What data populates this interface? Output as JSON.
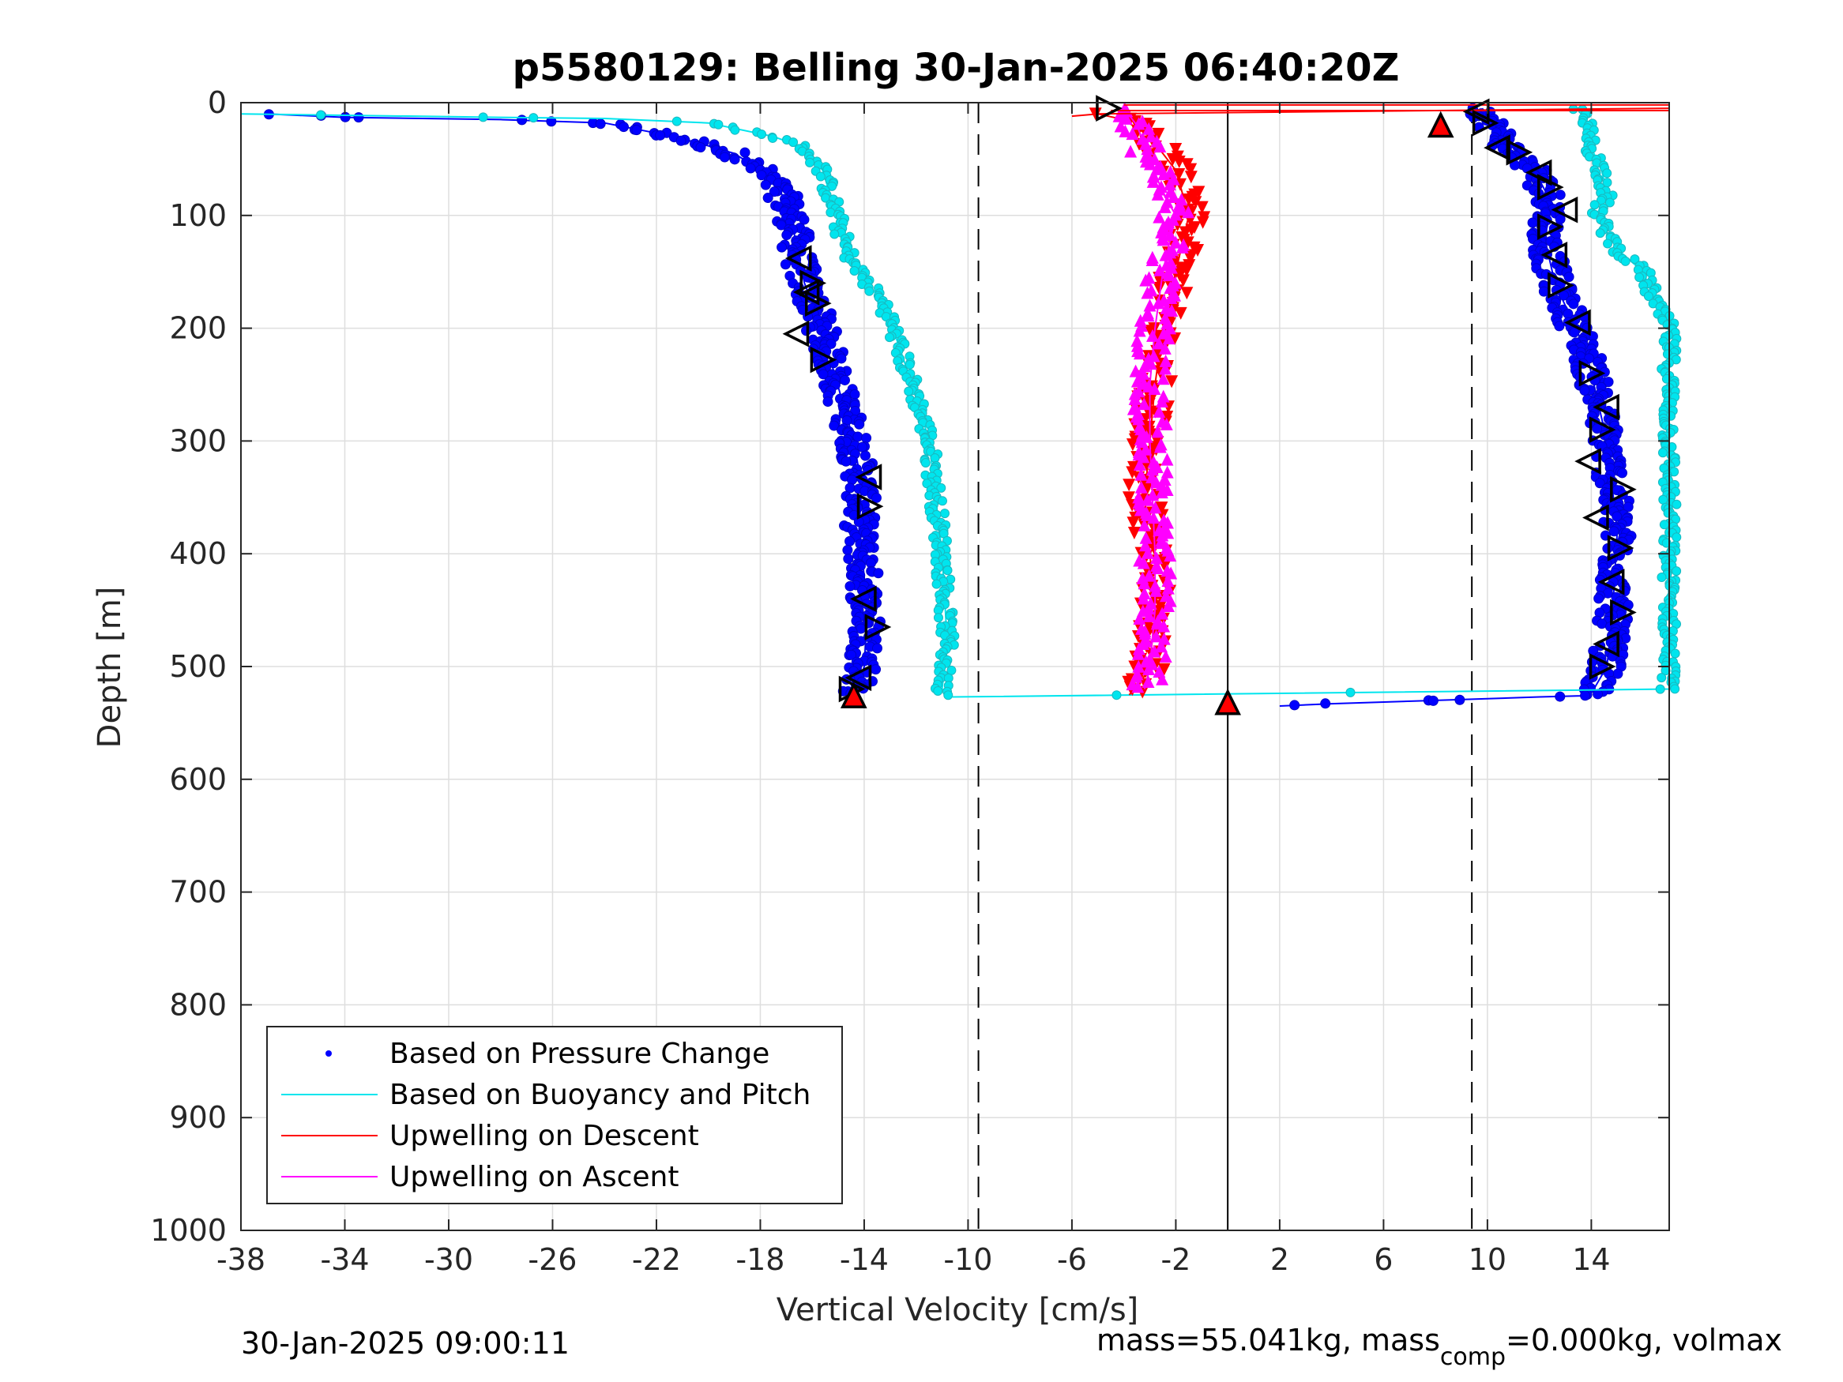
{
  "chart_data": {
    "type": "scatter",
    "title": "p5580129: Belling 30-Jan-2025 06:40:20Z",
    "xlabel": "Vertical Velocity [cm/s]",
    "ylabel": "Depth [m]",
    "xlim": [
      -38,
      17
    ],
    "ylim": [
      0,
      1000
    ],
    "y_reversed": true,
    "grid": true,
    "xticks": [
      -38,
      -34,
      -30,
      -26,
      -22,
      -18,
      -14,
      -10,
      -6,
      -2,
      2,
      6,
      10,
      14
    ],
    "yticks": [
      0,
      100,
      200,
      300,
      400,
      500,
      600,
      700,
      800,
      900,
      1000
    ],
    "legend_position": "bottom-left",
    "legend": [
      {
        "name": "Based on Pressure Change",
        "style": "dots",
        "color": "#0000ff"
      },
      {
        "name": "Based on Buoyancy and Pitch",
        "style": "line",
        "color": "#00e5ee"
      },
      {
        "name": "Upwelling on Descent",
        "style": "line",
        "color": "#ff0000"
      },
      {
        "name": "Upwelling on Ascent",
        "style": "line",
        "color": "#ff00ff"
      }
    ],
    "reference_lines": [
      {
        "x": -9.6,
        "style": "dashed"
      },
      {
        "x": 0,
        "style": "solid"
      },
      {
        "x": 9.4,
        "style": "dashed"
      }
    ],
    "series": [
      {
        "name": "Based on Pressure Change",
        "role": "descent",
        "color": "#0000ff",
        "profile": [
          [
            -37,
            10
          ],
          [
            -34,
            13
          ],
          [
            -28,
            15
          ],
          [
            -24,
            18
          ],
          [
            -22,
            27
          ],
          [
            -20.5,
            35
          ],
          [
            -19,
            45
          ],
          [
            -18,
            60
          ],
          [
            -17.2,
            80
          ],
          [
            -16.8,
            100
          ],
          [
            -16.6,
            130
          ],
          [
            -16.3,
            160
          ],
          [
            -15.8,
            190
          ],
          [
            -15.4,
            220
          ],
          [
            -14.9,
            260
          ],
          [
            -14.4,
            300
          ],
          [
            -14.1,
            340
          ],
          [
            -14.2,
            380
          ],
          [
            -14.0,
            420
          ],
          [
            -13.9,
            460
          ],
          [
            -14.0,
            500
          ],
          [
            -14.3,
            525
          ]
        ]
      },
      {
        "name": "Based on Buoyancy and Pitch",
        "role": "descent",
        "color": "#00e5ee",
        "profile": [
          [
            -38,
            10
          ],
          [
            -28,
            13
          ],
          [
            -24,
            14
          ],
          [
            -20,
            18
          ],
          [
            -17.5,
            30
          ],
          [
            -16.3,
            40
          ],
          [
            -15.6,
            60
          ],
          [
            -15.2,
            90
          ],
          [
            -14.7,
            130
          ],
          [
            -14.2,
            150
          ],
          [
            -13.2,
            180
          ],
          [
            -12.6,
            220
          ],
          [
            -12.0,
            260
          ],
          [
            -11.5,
            300
          ],
          [
            -11.2,
            360
          ],
          [
            -11.0,
            400
          ],
          [
            -10.9,
            440
          ],
          [
            -10.8,
            480
          ],
          [
            -11.0,
            520
          ],
          [
            -10.6,
            527
          ]
        ]
      },
      {
        "name": "Based on Pressure Change",
        "role": "ascent",
        "color": "#0000ff",
        "profile": [
          [
            9.8,
            5
          ],
          [
            10.2,
            20
          ],
          [
            10.8,
            40
          ],
          [
            11.8,
            60
          ],
          [
            12.5,
            90
          ],
          [
            12.2,
            120
          ],
          [
            12.6,
            160
          ],
          [
            13.2,
            190
          ],
          [
            13.8,
            220
          ],
          [
            14.2,
            260
          ],
          [
            14.6,
            300
          ],
          [
            14.8,
            340
          ],
          [
            15.0,
            380
          ],
          [
            14.9,
            420
          ],
          [
            14.8,
            460
          ],
          [
            14.6,
            500
          ],
          [
            14.1,
            520
          ],
          [
            13.6,
            526
          ],
          [
            12,
            527
          ],
          [
            8,
            530
          ],
          [
            4,
            533
          ],
          [
            2,
            535
          ]
        ]
      },
      {
        "name": "Based on Buoyancy and Pitch",
        "role": "ascent",
        "color": "#00e5ee",
        "profile": [
          [
            13.5,
            5
          ],
          [
            13.8,
            20
          ],
          [
            14.0,
            40
          ],
          [
            14.4,
            60
          ],
          [
            14.6,
            80
          ],
          [
            14.2,
            100
          ],
          [
            15.0,
            130
          ],
          [
            16.0,
            150
          ],
          [
            16.5,
            180
          ],
          [
            17,
            200
          ],
          [
            17,
            240
          ],
          [
            17,
            290
          ],
          [
            17,
            320
          ],
          [
            17,
            500
          ],
          [
            17,
            520
          ],
          [
            -10.6,
            527
          ]
        ]
      },
      {
        "name": "Upwelling on Descent",
        "color": "#ff0000",
        "profile": [
          [
            -6,
            12
          ],
          [
            -5,
            10
          ],
          [
            -4,
            15
          ],
          [
            -3,
            30
          ],
          [
            -2,
            60
          ],
          [
            -1.5,
            100
          ],
          [
            -2,
            150
          ],
          [
            -2.5,
            200
          ],
          [
            -2.8,
            250
          ],
          [
            -3,
            300
          ],
          [
            -3.2,
            350
          ],
          [
            -3.0,
            400
          ],
          [
            -2.8,
            450
          ],
          [
            -3.0,
            500
          ],
          [
            -3.5,
            520
          ],
          [
            -3.8,
            525
          ]
        ]
      },
      {
        "name": "Upwelling on Ascent",
        "color": "#ff00ff",
        "profile": [
          [
            -4,
            5
          ],
          [
            -3.5,
            20
          ],
          [
            -3,
            50
          ],
          [
            -2.5,
            80
          ],
          [
            -2,
            100
          ],
          [
            -2.5,
            150
          ],
          [
            -2.8,
            200
          ],
          [
            -3,
            250
          ],
          [
            -3.0,
            300
          ],
          [
            -2.9,
            350
          ],
          [
            -2.8,
            400
          ],
          [
            -2.8,
            450
          ],
          [
            -3.0,
            500
          ],
          [
            -3.2,
            520
          ]
        ]
      }
    ],
    "markers": {
      "descent_triangles": [
        [
          -16.5,
          138
        ],
        [
          -16.0,
          160
        ],
        [
          -16.2,
          168
        ],
        [
          -15.8,
          178
        ],
        [
          -16.6,
          205
        ],
        [
          -15.6,
          228
        ],
        [
          -13.8,
          332
        ],
        [
          -13.8,
          358
        ],
        [
          -14.0,
          440
        ],
        [
          -13.5,
          465
        ],
        [
          -14.2,
          510
        ],
        [
          -14.5,
          520
        ]
      ],
      "ascent_triangles": [
        [
          -4.6,
          5
        ],
        [
          9.6,
          8
        ],
        [
          9.9,
          18
        ],
        [
          10.4,
          40
        ],
        [
          11.2,
          44
        ],
        [
          12.0,
          62
        ],
        [
          12.4,
          75
        ],
        [
          13.0,
          95
        ],
        [
          12.4,
          110
        ],
        [
          12.6,
          135
        ],
        [
          12.8,
          162
        ],
        [
          13.5,
          195
        ],
        [
          14.0,
          240
        ],
        [
          14.6,
          270
        ],
        [
          14.4,
          290
        ],
        [
          13.9,
          318
        ],
        [
          15.2,
          343
        ],
        [
          14.2,
          368
        ],
        [
          15.1,
          395
        ],
        [
          14.8,
          425
        ],
        [
          15.2,
          452
        ],
        [
          14.6,
          480
        ],
        [
          14.4,
          500
        ]
      ],
      "red_filled": [
        [
          8.2,
          20
        ],
        [
          -14.4,
          526
        ],
        [
          0,
          532
        ]
      ]
    }
  },
  "footer": {
    "left_timestamp": "30-Jan-2025 09:00:11",
    "right_text_pre": "mass=55.041kg, mass",
    "right_text_sub": "comp",
    "right_text_post": "=0.000kg, volmax"
  }
}
